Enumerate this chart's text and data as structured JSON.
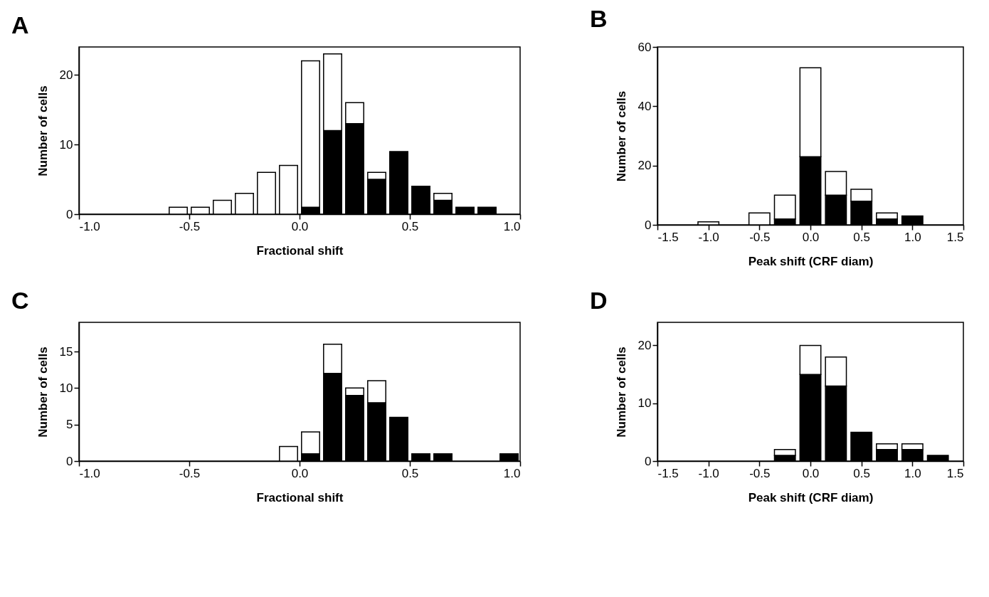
{
  "chart_data": [
    {
      "type": "bar",
      "title": "A",
      "xlabel": "Fractional shift",
      "ylabel": "Number of cells",
      "stacked": true,
      "grid": false,
      "legend": false,
      "x": [
        -0.55,
        -0.45,
        -0.35,
        -0.25,
        -0.15,
        -0.05,
        0.05,
        0.15,
        0.25,
        0.35,
        0.45,
        0.55,
        0.65,
        0.75,
        0.85
      ],
      "series": [
        {
          "color": "#000000",
          "values": [
            0,
            0,
            0,
            0,
            0,
            0,
            1,
            12,
            13,
            5,
            9,
            4,
            2,
            1,
            1
          ]
        },
        {
          "color": "#ffffff",
          "values": [
            1,
            1,
            2,
            3,
            6,
            7,
            21,
            11,
            3,
            1,
            0,
            0,
            1,
            0,
            0
          ]
        }
      ],
      "xlim": [
        -1,
        1
      ],
      "xticks": [
        {
          "value": -1,
          "label": "-1.0"
        },
        -0.5,
        {
          "value": 0,
          "label": "0.0"
        },
        0.5,
        {
          "value": 1,
          "label": "1.0"
        }
      ],
      "ylim": [
        0,
        24
      ],
      "yticks": [
        0,
        10,
        20
      ]
    },
    {
      "type": "bar",
      "title": "B",
      "xlabel": "Peak shift (CRF diam)",
      "ylabel": "Number of cells",
      "stacked": true,
      "grid": false,
      "legend": false,
      "x": [
        -1.0,
        -0.75,
        -0.5,
        -0.25,
        0.0,
        0.25,
        0.5,
        0.75,
        1.0
      ],
      "series": [
        {
          "color": "#000000",
          "values": [
            0,
            0,
            0,
            2,
            23,
            10,
            8,
            2,
            3
          ]
        },
        {
          "color": "#ffffff",
          "values": [
            1,
            0,
            4,
            8,
            30,
            8,
            4,
            2,
            0
          ]
        }
      ],
      "xlim": [
        -1.5,
        1.5
      ],
      "xticks": [
        -1.5,
        {
          "value": -1,
          "label": "-1.0"
        },
        -0.5,
        {
          "value": 0,
          "label": "0.0"
        },
        0.5,
        {
          "value": 1,
          "label": "1.0"
        },
        1.5
      ],
      "ylim": [
        0,
        60
      ],
      "yticks": [
        0,
        20,
        40,
        60
      ]
    },
    {
      "type": "bar",
      "title": "C",
      "xlabel": "Fractional shift",
      "ylabel": "Number of cells",
      "stacked": true,
      "grid": false,
      "legend": false,
      "x": [
        -0.05,
        0.05,
        0.15,
        0.25,
        0.35,
        0.45,
        0.55,
        0.65,
        0.75,
        0.85,
        0.95
      ],
      "series": [
        {
          "color": "#000000",
          "values": [
            0,
            1,
            12,
            9,
            8,
            6,
            1,
            1,
            0,
            0,
            1
          ]
        },
        {
          "color": "#ffffff",
          "values": [
            2,
            3,
            4,
            1,
            3,
            0,
            0,
            0,
            0,
            0,
            0
          ]
        }
      ],
      "xlim": [
        -1,
        1
      ],
      "xticks": [
        {
          "value": -1,
          "label": "-1.0"
        },
        -0.5,
        {
          "value": 0,
          "label": "0.0"
        },
        0.5,
        {
          "value": 1,
          "label": "1.0"
        }
      ],
      "ylim": [
        0,
        19
      ],
      "yticks": [
        0,
        5,
        10,
        15
      ]
    },
    {
      "type": "bar",
      "title": "D",
      "xlabel": "Peak shift (CRF diam)",
      "ylabel": "Number of cells",
      "stacked": true,
      "grid": false,
      "legend": false,
      "x": [
        -0.25,
        0.0,
        0.25,
        0.5,
        0.75,
        1.0,
        1.25
      ],
      "series": [
        {
          "color": "#000000",
          "values": [
            1,
            15,
            13,
            5,
            2,
            2,
            1
          ]
        },
        {
          "color": "#ffffff",
          "values": [
            1,
            5,
            5,
            0,
            1,
            1,
            0
          ]
        }
      ],
      "xlim": [
        -1.5,
        1.5
      ],
      "xticks": [
        -1.5,
        {
          "value": -1,
          "label": "-1.0"
        },
        -0.5,
        {
          "value": 0,
          "label": "0.0"
        },
        0.5,
        {
          "value": 1,
          "label": "1.0"
        },
        1.5
      ],
      "ylim": [
        0,
        24
      ],
      "yticks": [
        0,
        10,
        20
      ]
    }
  ]
}
